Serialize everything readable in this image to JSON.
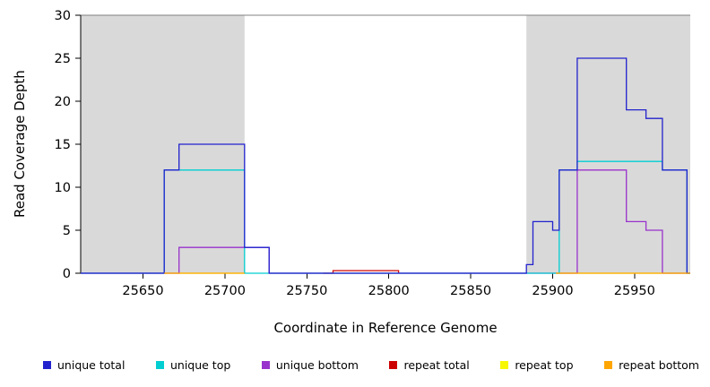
{
  "chart_data": {
    "type": "line",
    "subtype": "step-coverage",
    "title": "",
    "xlabel": "Coordinate in Reference Genome",
    "ylabel": "Read Coverage Depth",
    "xlim": [
      25612,
      25984
    ],
    "ylim": [
      0,
      30
    ],
    "xticks": [
      25650,
      25700,
      25750,
      25800,
      25850,
      25900,
      25950
    ],
    "yticks": [
      0,
      5,
      10,
      15,
      20,
      25,
      30
    ],
    "grid": false,
    "legend_position": "bottom",
    "axis_color": "#000000",
    "shaded_regions": [
      {
        "x0": 25612,
        "x1": 25712,
        "color": "#d9d9d9"
      },
      {
        "x0": 25884,
        "x1": 25984,
        "color": "#d9d9d9"
      }
    ],
    "reference_line": {
      "y": 30,
      "color": "#808080"
    },
    "series": [
      {
        "name": "unique total",
        "color": "#2222cd",
        "zorder": 5,
        "segments": [
          [
            [
              25612,
              0
            ],
            [
              25663,
              12
            ],
            [
              25672,
              15
            ],
            [
              25712,
              3
            ],
            [
              25727,
              0
            ],
            [
              25884,
              1
            ],
            [
              25888,
              6
            ],
            [
              25900,
              5
            ],
            [
              25904,
              12
            ],
            [
              25915,
              25
            ],
            [
              25945,
              19
            ],
            [
              25957,
              18
            ],
            [
              25967,
              12
            ],
            [
              25982,
              0
            ],
            [
              25984,
              0
            ]
          ]
        ]
      },
      {
        "name": "unique top",
        "color": "#00ced1",
        "zorder": 4,
        "segments": [
          [
            [
              25612,
              0
            ],
            [
              25663,
              12
            ],
            [
              25712,
              0
            ],
            [
              25904,
              12
            ],
            [
              25915,
              13
            ],
            [
              25967,
              12
            ],
            [
              25982,
              0
            ],
            [
              25984,
              0
            ]
          ]
        ]
      },
      {
        "name": "unique bottom",
        "color": "#9932cc",
        "zorder": 3,
        "segments": [
          [
            [
              25612,
              0
            ],
            [
              25672,
              3
            ],
            [
              25727,
              0
            ],
            [
              25915,
              12
            ],
            [
              25945,
              6
            ],
            [
              25957,
              5
            ],
            [
              25967,
              0
            ],
            [
              25984,
              0
            ]
          ]
        ]
      },
      {
        "name": "repeat total",
        "color": "#cd0000",
        "zorder": 2,
        "segments": [
          [
            [
              25760,
              0
            ],
            [
              25766,
              0.3
            ],
            [
              25806,
              0
            ]
          ]
        ]
      },
      {
        "name": "repeat top",
        "color": "#f7f700",
        "zorder": 1,
        "segments": [
          [
            [
              25663,
              0
            ],
            [
              25712,
              0
            ]
          ],
          [
            [
              25902,
              0
            ],
            [
              25984,
              0
            ]
          ]
        ]
      },
      {
        "name": "repeat bottom",
        "color": "#ffa500",
        "zorder": 6,
        "segments": [
          [
            [
              25663,
              0
            ],
            [
              25712,
              0
            ]
          ],
          [
            [
              25902,
              0
            ],
            [
              25984,
              0
            ]
          ]
        ]
      }
    ],
    "legend": [
      {
        "label": "unique total",
        "color": "#2222cd"
      },
      {
        "label": "unique top",
        "color": "#00ced1"
      },
      {
        "label": "unique bottom",
        "color": "#9932cc"
      },
      {
        "label": "repeat total",
        "color": "#cd0000"
      },
      {
        "label": "repeat top",
        "color": "#f7f700"
      },
      {
        "label": "repeat bottom",
        "color": "#ffa500"
      }
    ]
  }
}
